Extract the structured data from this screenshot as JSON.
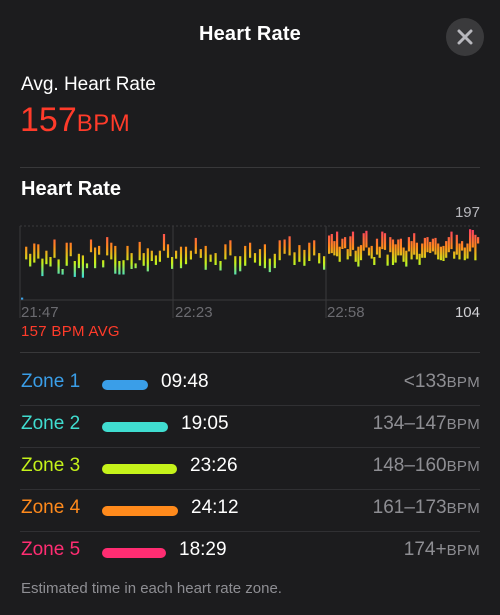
{
  "header": {
    "title": "Heart Rate",
    "close_icon": "close-icon"
  },
  "summary": {
    "label": "Avg. Heart Rate",
    "value": "157",
    "unit": "BPM"
  },
  "chart": {
    "title": "Heart Rate",
    "y_max_label": "197",
    "y_min_label": "104",
    "x_labels": [
      "21:47",
      "22:23",
      "22:58"
    ],
    "avg_label": "157 BPM AVG"
  },
  "chart_data": {
    "type": "range-bar",
    "ylim": [
      104,
      197
    ],
    "x_ticks": [
      "21:47",
      "22:23",
      "22:58"
    ],
    "colors": {
      "zone1": "#3a9ee8",
      "zone2": "#40ddd0",
      "zone3": "#c5f21a",
      "zone4": "#ff8a1c",
      "zone5": "#ff2d72"
    },
    "series": [
      {
        "values": [
          [
            105,
            107
          ],
          [
            155,
            171
          ],
          [
            146,
            162
          ],
          [
            151,
            175
          ],
          [
            156,
            174
          ],
          [
            134,
            156
          ],
          [
            149,
            166
          ],
          [
            146,
            158
          ],
          [
            157,
            180
          ],
          [
            137,
            155
          ],
          [
            136,
            143
          ],
          [
            147,
            176
          ],
          [
            159,
            176
          ],
          [
            133,
            153
          ],
          [
            144,
            162
          ],
          [
            132,
            160
          ],
          [
            144,
            150
          ],
          [
            164,
            180
          ],
          [
            144,
            170
          ],
          [
            161,
            172
          ],
          [
            145,
            154
          ],
          [
            160,
            183
          ],
          [
            155,
            176
          ],
          [
            137,
            172
          ],
          [
            136,
            153
          ],
          [
            136,
            154
          ],
          [
            154,
            172
          ],
          [
            143,
            163
          ],
          [
            144,
            150
          ],
          [
            154,
            177
          ],
          [
            147,
            163
          ],
          [
            140,
            169
          ],
          [
            153,
            166
          ],
          [
            148,
            160
          ],
          [
            152,
            166
          ],
          [
            166,
            187
          ],
          [
            157,
            174
          ],
          [
            143,
            158
          ]
        ]
      },
      {
        "values": [
          [
            156,
            166
          ],
          [
            144,
            171
          ],
          [
            149,
            171
          ],
          [
            155,
            166
          ],
          [
            162,
            182
          ],
          [
            157,
            168
          ],
          [
            142,
            172
          ],
          [
            152,
            161
          ],
          [
            148,
            163
          ],
          [
            141,
            153
          ],
          [
            155,
            174
          ],
          [
            160,
            179
          ],
          [
            136,
            159
          ],
          [
            140,
            159
          ],
          [
            147,
            172
          ],
          [
            157,
            176
          ],
          [
            151,
            163
          ],
          [
            147,
            168
          ],
          [
            144,
            174
          ],
          [
            139,
            156
          ],
          [
            144,
            162
          ],
          [
            154,
            179
          ],
          [
            162,
            180
          ],
          [
            160,
            184
          ],
          [
            148,
            164
          ],
          [
            152,
            173
          ],
          [
            147,
            167
          ],
          [
            153,
            176
          ],
          [
            160,
            179
          ],
          [
            150,
            163
          ],
          [
            142,
            159
          ]
        ]
      },
      {
        "values": [
          [
            162,
            185
          ],
          [
            163,
            187
          ],
          [
            160,
            178
          ],
          [
            159,
            190
          ],
          [
            152,
            171
          ],
          [
            168,
            181
          ],
          [
            169,
            183
          ],
          [
            155,
            168
          ],
          [
            159,
            184
          ],
          [
            167,
            190
          ],
          [
            152,
            166
          ],
          [
            146,
            171
          ],
          [
            154,
            173
          ],
          [
            166,
            188
          ],
          [
            170,
            191
          ],
          [
            160,
            170
          ],
          [
            156,
            172
          ],
          [
            148,
            158
          ],
          [
            161,
            181
          ],
          [
            157,
            171
          ],
          [
            168,
            190
          ],
          [
            167,
            188
          ],
          [
            147,
            161
          ],
          [
            164,
            183
          ],
          [
            148,
            180
          ],
          [
            151,
            174
          ],
          [
            160,
            180
          ],
          [
            160,
            181
          ],
          [
            152,
            170
          ],
          [
            146,
            166
          ],
          [
            165,
            183
          ],
          [
            155,
            178
          ],
          [
            161,
            188
          ],
          [
            155,
            176
          ],
          [
            148,
            162
          ],
          [
            157,
            175
          ],
          [
            157,
            182
          ],
          [
            164,
            183
          ],
          [
            163,
            177
          ],
          [
            165,
            181
          ],
          [
            161,
            182
          ],
          [
            155,
            175
          ],
          [
            154,
            171
          ],
          [
            153,
            172
          ],
          [
            157,
            178
          ],
          [
            164,
            183
          ],
          [
            168,
            190
          ],
          [
            156,
            165
          ],
          [
            161,
            186
          ],
          [
            155,
            175
          ],
          [
            166,
            178
          ],
          [
            154,
            170
          ],
          [
            156,
            175
          ],
          [
            165,
            193
          ],
          [
            170,
            192
          ],
          [
            154,
            186
          ],
          [
            175,
            183
          ]
        ]
      }
    ]
  },
  "zones": [
    {
      "name": "Zone 1",
      "time": "09:48",
      "range": "<133",
      "unit": "BPM",
      "color": "#3a9ee8",
      "fraction": 0.4
    },
    {
      "name": "Zone 2",
      "time": "19:05",
      "range": "134–147",
      "unit": "BPM",
      "color": "#40ddd0",
      "fraction": 0.79
    },
    {
      "name": "Zone 3",
      "time": "23:26",
      "range": "148–160",
      "unit": "BPM",
      "color": "#c5f21a",
      "fraction": 0.97
    },
    {
      "name": "Zone 4",
      "time": "24:12",
      "range": "161–173",
      "unit": "BPM",
      "color": "#ff8a1c",
      "fraction": 1.0
    },
    {
      "name": "Zone 5",
      "time": "18:29",
      "range": "174+",
      "unit": "BPM",
      "color": "#ff2d72",
      "fraction": 0.76
    }
  ],
  "footnote": "Estimated time in each heart rate zone."
}
